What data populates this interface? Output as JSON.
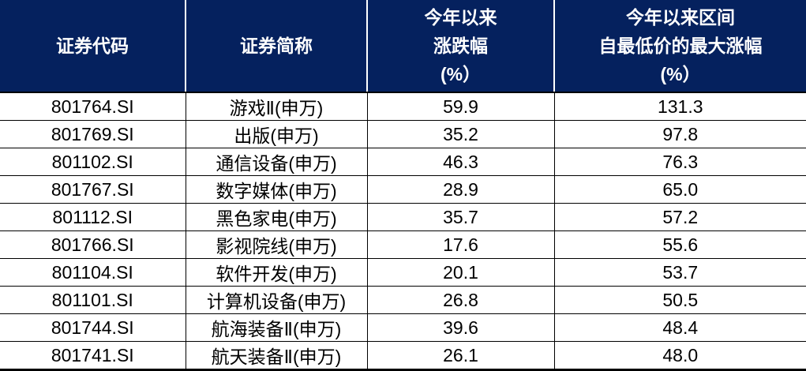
{
  "table": {
    "headers": [
      "证券代码",
      "证券简称",
      "今年以来\n涨跌幅\n(%）",
      "今年以来区间\n自最低价的最大涨幅\n(%）"
    ],
    "header_bg": "#05215E",
    "header_text_color": "#FFFFFF",
    "body_text_color": "#000000",
    "grid_line_color": "#000000"
  },
  "chart_data": {
    "type": "table",
    "columns": [
      "证券代码",
      "证券简称",
      "今年以来涨跌幅(%）",
      "今年以来区间自最低价的最大涨幅(%）"
    ],
    "rows": [
      [
        "801764.SI",
        "游戏Ⅱ(申万)",
        "59.9",
        "131.3"
      ],
      [
        "801769.SI",
        "出版(申万)",
        "35.2",
        "97.8"
      ],
      [
        "801102.SI",
        "通信设备(申万)",
        "46.3",
        "76.3"
      ],
      [
        "801767.SI",
        "数字媒体(申万)",
        "28.9",
        "65.0"
      ],
      [
        "801112.SI",
        "黑色家电(申万)",
        "35.7",
        "57.2"
      ],
      [
        "801766.SI",
        "影视院线(申万)",
        "17.6",
        "55.6"
      ],
      [
        "801104.SI",
        "软件开发(申万)",
        "20.1",
        "53.7"
      ],
      [
        "801101.SI",
        "计算机设备(申万)",
        "26.8",
        "50.5"
      ],
      [
        "801744.SI",
        "航海装备Ⅱ(申万)",
        "39.6",
        "48.4"
      ],
      [
        "801741.SI",
        "航天装备Ⅱ(申万)",
        "26.1",
        "48.0"
      ]
    ]
  }
}
